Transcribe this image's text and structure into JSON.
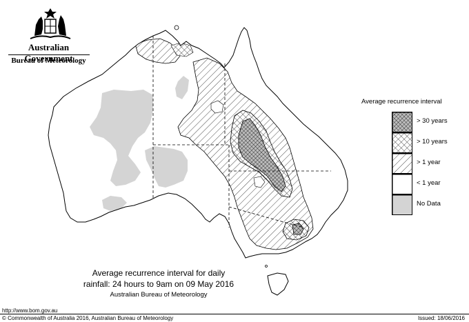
{
  "header": {
    "government": "Australian Government",
    "bureau": "Bureau of Meteorology",
    "crest_icon": "commonwealth-coat-of-arms-icon"
  },
  "legend": {
    "title": "Average recurrence interval",
    "items": [
      {
        "label": "> 30 years",
        "pattern": "dense-crosshatch",
        "fill": "#bdbdbd"
      },
      {
        "label": "> 10 years",
        "pattern": "crosshatch",
        "fill": "#ffffff"
      },
      {
        "label": "> 1 year",
        "pattern": "diagonal-hatch",
        "fill": "#ffffff"
      },
      {
        "label": "< 1 year",
        "pattern": "none",
        "fill": "#ffffff"
      },
      {
        "label": "No Data",
        "pattern": "none",
        "fill": "#d4d4d4"
      }
    ]
  },
  "caption": {
    "line1": "Average recurrence interval for daily",
    "line2": "rainfall: 24 hours to 9am on 09 May 2016",
    "line3": "Australian Bureau of Meteorology"
  },
  "footer": {
    "url": "http://www.bom.gov.au",
    "copyright": "© Commonwealth of Australia 2016, Australian Bureau of Meteorology",
    "issued": "Issued: 18/06/2016"
  }
}
